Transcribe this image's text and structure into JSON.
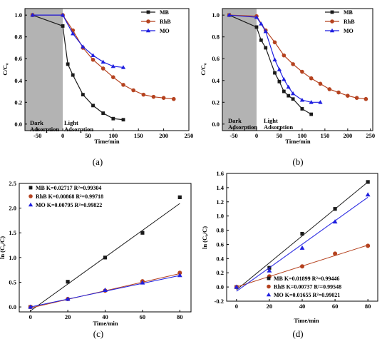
{
  "colors": {
    "MB": "#1a1a1a",
    "RhB": "#b5421f",
    "MO": "#1f1fe0",
    "dark_region": "#b3b3b3"
  },
  "chart_data": [
    {
      "panel": "(a)",
      "type": "line",
      "xlabel": "Time/min",
      "ylabel": "C/C₀",
      "xlim": [
        -75,
        250
      ],
      "ylim": [
        -0.06,
        1.06
      ],
      "xticks": [
        -50,
        0,
        50,
        100,
        150,
        200,
        250
      ],
      "yticks": [
        0.0,
        0.2,
        0.4,
        0.6,
        0.8,
        1.0
      ],
      "dark_region": [
        -75,
        0
      ],
      "annotations": [
        [
          "Dark",
          "Adsorption"
        ],
        [
          "Light",
          "Adsorption"
        ]
      ],
      "legend": "top-right",
      "series": [
        {
          "name": "MB",
          "color": "#1a1a1a",
          "marker": "square",
          "x": [
            -60,
            0,
            10,
            20,
            40,
            60,
            80,
            100,
            120
          ],
          "y": [
            1.0,
            0.9,
            0.55,
            0.45,
            0.27,
            0.17,
            0.1,
            0.05,
            0.04
          ]
        },
        {
          "name": "RhB",
          "color": "#b5421f",
          "marker": "circle",
          "x": [
            -60,
            0,
            20,
            40,
            60,
            80,
            100,
            120,
            140,
            160,
            180,
            200,
            220
          ],
          "y": [
            1.0,
            1.0,
            0.86,
            0.7,
            0.59,
            0.51,
            0.43,
            0.36,
            0.31,
            0.27,
            0.25,
            0.24,
            0.23
          ]
        },
        {
          "name": "MO",
          "color": "#1f1fe0",
          "marker": "triangle",
          "x": [
            -60,
            0,
            20,
            40,
            60,
            80,
            100,
            120
          ],
          "y": [
            1.0,
            1.0,
            0.83,
            0.71,
            0.63,
            0.57,
            0.53,
            0.52
          ]
        }
      ]
    },
    {
      "panel": "(b)",
      "type": "line",
      "xlabel": "Time/min",
      "ylabel": "C/C₀",
      "xlim": [
        -75,
        255
      ],
      "ylim": [
        -0.06,
        1.06
      ],
      "xticks": [
        -50,
        0,
        50,
        100,
        150,
        200,
        250
      ],
      "yticks": [
        0.0,
        0.2,
        0.4,
        0.6,
        0.8,
        1.0
      ],
      "dark_region": [
        -75,
        0
      ],
      "annotations": [
        [
          "Dark",
          "Adsorption"
        ],
        [
          "Light",
          "Adsorption"
        ]
      ],
      "legend": "top-right",
      "series": [
        {
          "name": "MB",
          "color": "#1a1a1a",
          "marker": "square",
          "x": [
            -60,
            0,
            10,
            20,
            40,
            50,
            60,
            70,
            80,
            100,
            120
          ],
          "y": [
            1.0,
            0.89,
            0.77,
            0.7,
            0.47,
            0.39,
            0.3,
            0.26,
            0.23,
            0.14,
            0.09
          ]
        },
        {
          "name": "RhB",
          "color": "#b5421f",
          "marker": "circle",
          "x": [
            -60,
            0,
            20,
            40,
            60,
            80,
            100,
            120,
            140,
            160,
            180,
            200,
            220,
            240
          ],
          "y": [
            1.0,
            0.99,
            0.86,
            0.75,
            0.63,
            0.55,
            0.48,
            0.42,
            0.37,
            0.32,
            0.29,
            0.26,
            0.24,
            0.23
          ]
        },
        {
          "name": "MO",
          "color": "#1f1fe0",
          "marker": "triangle",
          "x": [
            -60,
            0,
            10,
            20,
            40,
            50,
            60,
            70,
            80,
            100,
            120,
            140
          ],
          "y": [
            1.0,
            0.98,
            0.92,
            0.85,
            0.59,
            0.5,
            0.41,
            0.34,
            0.28,
            0.22,
            0.2,
            0.2
          ]
        }
      ]
    },
    {
      "panel": "(c)",
      "type": "scatter",
      "xlabel": "Time/min",
      "ylabel": "ln (C₀/C)",
      "xlim": [
        -6,
        86
      ],
      "ylim": [
        -0.1,
        2.5
      ],
      "xticks": [
        0,
        20,
        40,
        60,
        80
      ],
      "yticks": [
        0.0,
        0.5,
        1.0,
        1.5,
        2.0,
        2.5
      ],
      "legend": "top-left",
      "series": [
        {
          "name": "MB",
          "legend_text": "MB K=0.02717 R²=0.99304",
          "color": "#1a1a1a",
          "marker": "square",
          "x": [
            0,
            20,
            40,
            60,
            80
          ],
          "y": [
            0.0,
            0.51,
            1.0,
            1.5,
            2.22
          ],
          "fit": [
            -0.08,
            0.02717
          ]
        },
        {
          "name": "RhB",
          "legend_text": "RhB K=0.00868 R²=0.99718",
          "color": "#b5421f",
          "marker": "circle",
          "x": [
            0,
            20,
            40,
            60,
            80
          ],
          "y": [
            0.0,
            0.16,
            0.33,
            0.52,
            0.69
          ],
          "fit": [
            -0.02,
            0.00868
          ]
        },
        {
          "name": "MO",
          "legend_text": "MO K=0.00795 R²=0.99822",
          "color": "#1f1fe0",
          "marker": "triangle",
          "x": [
            0,
            20,
            40,
            60,
            80
          ],
          "y": [
            0.0,
            0.16,
            0.34,
            0.49,
            0.64
          ],
          "fit": [
            0.0,
            0.00795
          ]
        }
      ]
    },
    {
      "panel": "(d)",
      "type": "scatter",
      "xlabel": "Time/min",
      "ylabel": "ln (C₀/C)",
      "xlim": [
        -6,
        86
      ],
      "ylim": [
        -0.2,
        1.6
      ],
      "xticks": [
        0,
        20,
        40,
        60,
        80
      ],
      "yticks": [
        -0.2,
        0.0,
        0.2,
        0.4,
        0.6,
        0.8,
        1.0,
        1.2,
        1.4,
        1.6
      ],
      "legend": "bottom-right",
      "series": [
        {
          "name": "MB",
          "legend_text": "MB K=0.01899 R²=0.99446",
          "color": "#1a1a1a",
          "marker": "square",
          "x": [
            0,
            20,
            40,
            60,
            80
          ],
          "y": [
            0.0,
            0.27,
            0.75,
            1.1,
            1.48
          ],
          "fit": [
            -0.04,
            0.01899
          ]
        },
        {
          "name": "RhB",
          "legend_text": "RhB K=0.00737 R²=0.99548",
          "color": "#b5421f",
          "marker": "circle",
          "x": [
            0,
            20,
            40,
            60,
            80
          ],
          "y": [
            0.0,
            0.15,
            0.29,
            0.47,
            0.58
          ],
          "fit": [
            0.0,
            0.00737
          ]
        },
        {
          "name": "MO",
          "legend_text": "MO K=0.01655 R²=0.99021",
          "color": "#1f1fe0",
          "marker": "triangle",
          "x": [
            0,
            20,
            40,
            60,
            80
          ],
          "y": [
            0.0,
            0.23,
            0.55,
            0.92,
            1.3
          ],
          "fit": [
            -0.06,
            0.01655
          ]
        }
      ]
    }
  ]
}
